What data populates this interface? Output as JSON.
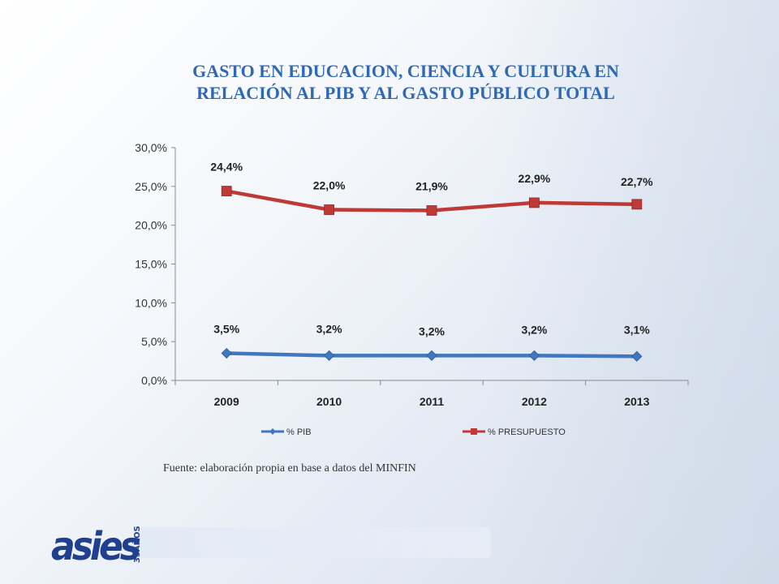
{
  "title_line1": "GASTO EN EDUCACION, CIENCIA Y CULTURA EN",
  "title_line2": "RELACIÓN AL PIB Y AL GASTO PÚBLICO TOTAL",
  "source_note": "Fuente: elaboración propia en base a datos del MINFIN",
  "logo": {
    "text": "asies",
    "years": "35AÑOS"
  },
  "colors": {
    "title": "#2f68b4",
    "pib": "#4077c0",
    "presupuesto": "#bf3a37"
  },
  "chart_data": {
    "type": "line",
    "title": "",
    "xlabel": "",
    "ylabel": "",
    "categories": [
      "2009",
      "2010",
      "2011",
      "2012",
      "2013"
    ],
    "ylim": [
      0,
      30
    ],
    "y_ticks": [
      0,
      5,
      10,
      15,
      20,
      25,
      30
    ],
    "y_tick_labels": [
      "0,0%",
      "5,0%",
      "10,0%",
      "15,0%",
      "20,0%",
      "25,0%",
      "30,0%"
    ],
    "grid": false,
    "legend_position": "bottom",
    "series": [
      {
        "name": "% PIB",
        "values": [
          3.5,
          3.2,
          3.2,
          3.2,
          3.1
        ],
        "labels": [
          "3,5%",
          "3,2%",
          "3,2%",
          "3,2%",
          "3,1%"
        ],
        "marker": "diamond",
        "color": "#4077c0"
      },
      {
        "name": "% PRESUPUESTO",
        "values": [
          24.4,
          22.0,
          21.9,
          22.9,
          22.7
        ],
        "labels": [
          "24,4%",
          "22,0%",
          "21,9%",
          "22,9%",
          "22,7%"
        ],
        "marker": "square",
        "color": "#bf3a37"
      }
    ]
  }
}
